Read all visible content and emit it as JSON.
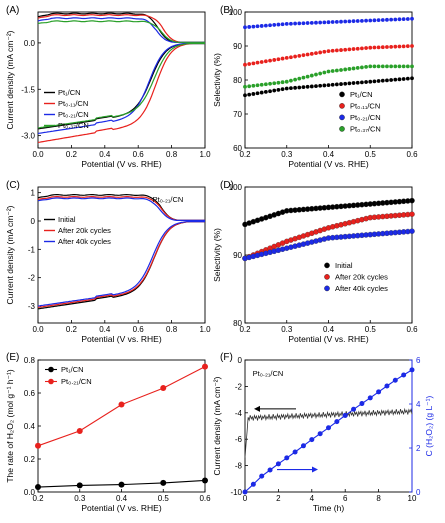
{
  "figure": {
    "panel_labels": [
      "(A)",
      "(B)",
      "(C)",
      "(D)",
      "(E)",
      "(F)"
    ]
  },
  "chart_data": [
    {
      "panel": "(A)",
      "type": "line",
      "xlabel": "Potential (V vs. RHE)",
      "ylabel": "Current density (mA cm⁻²)",
      "xlim": [
        0.0,
        1.0
      ],
      "ylim": [
        -3.4,
        1.0
      ],
      "xticks": [
        "0.0",
        "0.2",
        "0.4",
        "0.6",
        "0.8",
        "1.0"
      ],
      "yticks": [
        "0.0",
        "-1.5",
        "-3.0"
      ],
      "legend": [
        "Pt₁/CN",
        "Pt₀.₁₁/CN",
        "Pt₀.₂₁/CN",
        "Pt₀.₃₇/CN"
      ],
      "legend_position": "lower-left",
      "grid": false,
      "series": [
        {
          "name": "Pt₁/CN",
          "color": "#000000",
          "ring_plateau": 0.95,
          "disk_limit": -2.78,
          "onset": 0.72
        },
        {
          "name": "Pt₀.₁₁/CN",
          "color": "#e8211d",
          "ring_plateau": 0.9,
          "disk_limit": -3.22,
          "onset": 0.75
        },
        {
          "name": "Pt₀.₂₁/CN",
          "color": "#1c2ae6",
          "ring_plateau": 0.8,
          "disk_limit": -2.93,
          "onset": 0.71
        },
        {
          "name": "Pt₀.₃₇/CN",
          "color": "#2aa02a",
          "ring_plateau": 0.7,
          "disk_limit": -2.75,
          "onset": 0.74
        }
      ]
    },
    {
      "panel": "(B)",
      "type": "scatter",
      "xlabel": "Potential (V vs. RHE)",
      "ylabel": "Selectivity (%)",
      "xlim": [
        0.2,
        0.6
      ],
      "ylim": [
        60,
        100
      ],
      "xticks": [
        "0.2",
        "0.3",
        "0.4",
        "0.5",
        "0.6"
      ],
      "yticks": [
        "60",
        "70",
        "80",
        "90",
        "100"
      ],
      "legend": [
        "Pt₁/CN",
        "Pt₀.₁₁/CN",
        "Pt₀.₂₁/CN",
        "Pt₀.₃₇/CN"
      ],
      "legend_position": "lower-right",
      "grid": false,
      "series": [
        {
          "name": "Pt₁/CN",
          "color": "#000000",
          "x": [
            0.2,
            0.3,
            0.4,
            0.5,
            0.6
          ],
          "y": [
            75.5,
            77.5,
            78.5,
            79.5,
            80.5
          ]
        },
        {
          "name": "Pt₀.₁₁/CN",
          "color": "#e8211d",
          "x": [
            0.2,
            0.3,
            0.4,
            0.5,
            0.6
          ],
          "y": [
            84.5,
            86.5,
            88.5,
            89.5,
            90.0
          ]
        },
        {
          "name": "Pt₀.₂₁/CN",
          "color": "#1c2ae6",
          "x": [
            0.2,
            0.3,
            0.4,
            0.5,
            0.6
          ],
          "y": [
            95.5,
            96.5,
            97.0,
            97.5,
            98.0
          ]
        },
        {
          "name": "Pt₀.₃₇/CN",
          "color": "#2aa02a",
          "x": [
            0.2,
            0.3,
            0.4,
            0.5,
            0.6
          ],
          "y": [
            78.0,
            79.5,
            82.5,
            84.0,
            84.0
          ]
        }
      ]
    },
    {
      "panel": "(C)",
      "type": "line",
      "title": "Pt₀.₂₁/CN",
      "xlabel": "Potential (V vs. RHE)",
      "ylabel": "Current density (mA cm⁻²)",
      "xlim": [
        0.0,
        1.0
      ],
      "ylim": [
        -3.6,
        1.2
      ],
      "xticks": [
        "0.0",
        "0.2",
        "0.4",
        "0.6",
        "0.8",
        "1.0"
      ],
      "yticks": [
        "-3",
        "-2",
        "-1",
        "0",
        "1"
      ],
      "legend": [
        "Initial",
        "After 20k cycles",
        "After 40k cycles"
      ],
      "legend_position": "upper-left",
      "grid": false,
      "series": [
        {
          "name": "Initial",
          "color": "#000000",
          "ring_plateau": 0.92,
          "disk_limit": -3.1,
          "onset": 0.74
        },
        {
          "name": "After 20k cycles",
          "color": "#e8211d",
          "ring_plateau": 0.85,
          "disk_limit": -3.05,
          "onset": 0.74
        },
        {
          "name": "After 40k cycles",
          "color": "#1c2ae6",
          "ring_plateau": 0.8,
          "disk_limit": -3.0,
          "onset": 0.73
        }
      ]
    },
    {
      "panel": "(D)",
      "type": "scatter",
      "xlabel": "Potential (V vs. RHE)",
      "ylabel": "Selectivity (%)",
      "xlim": [
        0.2,
        0.6
      ],
      "ylim": [
        80,
        100
      ],
      "xticks": [
        "0.2",
        "0.3",
        "0.4",
        "0.5",
        "0.6"
      ],
      "yticks": [
        "80",
        "90",
        "100"
      ],
      "legend": [
        "Initial",
        "After 20k cycles",
        "After 40k cycles"
      ],
      "legend_position": "lower-right",
      "grid": false,
      "series": [
        {
          "name": "Initial",
          "color": "#000000",
          "x": [
            0.2,
            0.3,
            0.4,
            0.5,
            0.6
          ],
          "y": [
            94.5,
            96.5,
            97.0,
            97.5,
            98.0
          ]
        },
        {
          "name": "After 20k cycles",
          "color": "#e8211d",
          "x": [
            0.2,
            0.3,
            0.4,
            0.5,
            0.6
          ],
          "y": [
            89.5,
            92.0,
            94.0,
            95.5,
            96.0
          ]
        },
        {
          "name": "After 40k cycles",
          "color": "#1c2ae6",
          "x": [
            0.2,
            0.3,
            0.4,
            0.5,
            0.6
          ],
          "y": [
            89.5,
            91.0,
            92.5,
            93.0,
            93.5
          ]
        }
      ]
    },
    {
      "panel": "(E)",
      "type": "line",
      "xlabel": "Potential (V vs. RHE)",
      "ylabel": "The rate of H₂O₂ (mol g⁻¹ h⁻¹)",
      "xlim": [
        0.2,
        0.6
      ],
      "ylim": [
        0.0,
        0.8
      ],
      "xticks": [
        "0.2",
        "0.3",
        "0.4",
        "0.5",
        "0.6"
      ],
      "yticks": [
        "0.0",
        "0.2",
        "0.4",
        "0.6",
        "0.8"
      ],
      "legend": [
        "Pt₁/CN",
        "Pt₀.₂₁/CN"
      ],
      "legend_position": "upper-left",
      "grid": false,
      "series": [
        {
          "name": "Pt₁/CN",
          "color": "#000000",
          "x": [
            0.2,
            0.3,
            0.4,
            0.5,
            0.6
          ],
          "y": [
            0.03,
            0.04,
            0.045,
            0.055,
            0.07
          ]
        },
        {
          "name": "Pt₀.₂₁/CN",
          "color": "#e8211d",
          "x": [
            0.2,
            0.3,
            0.4,
            0.5,
            0.6
          ],
          "y": [
            0.28,
            0.37,
            0.53,
            0.63,
            0.76
          ]
        }
      ]
    },
    {
      "panel": "(F)",
      "type": "line",
      "title": "Pt₀.₂₁/CN",
      "xlabel": "Time (h)",
      "ylabel": "Current density (mA cm⁻²)",
      "ylabel_right": "C (H₂O₂) (g L⁻¹)",
      "xlim": [
        0,
        10
      ],
      "ylim": [
        -10,
        0
      ],
      "ylim_right": [
        0,
        6
      ],
      "xticks": [
        "0",
        "2",
        "4",
        "6",
        "8",
        "10"
      ],
      "yticks": [
        "0",
        "-2",
        "-4",
        "-6",
        "-8",
        "-10"
      ],
      "yticks_right": [
        "0",
        "2",
        "4",
        "6"
      ],
      "grid": false,
      "current_series": {
        "color": "#333333",
        "x": [
          0,
          2,
          4,
          6,
          8,
          10
        ],
        "y": [
          -4.4,
          -4.3,
          -4.2,
          -4.1,
          -4.0,
          -3.9
        ]
      },
      "concentration_series": {
        "color": "#1c2ae6",
        "x": [
          0,
          0.5,
          1,
          1.5,
          2,
          2.5,
          3,
          3.5,
          4,
          4.5,
          5,
          5.5,
          6,
          6.5,
          7,
          7.5,
          8,
          8.5,
          9,
          9.5,
          10
        ],
        "y": [
          0,
          0.35,
          0.72,
          1.0,
          1.28,
          1.55,
          1.82,
          2.1,
          2.38,
          2.65,
          2.92,
          3.2,
          3.48,
          3.76,
          4.02,
          4.28,
          4.55,
          4.82,
          5.08,
          5.32,
          5.55
        ]
      }
    }
  ]
}
